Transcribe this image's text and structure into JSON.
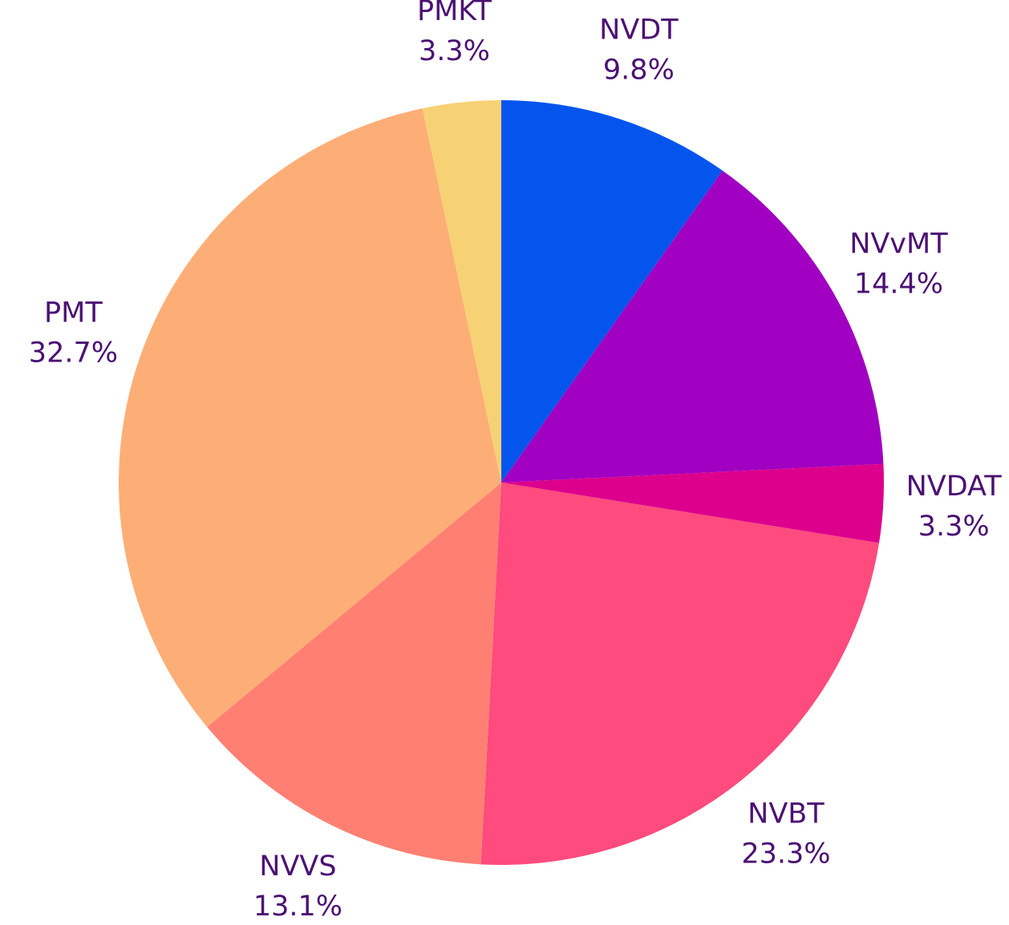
{
  "chart_data": {
    "type": "pie",
    "categories": [
      "NVDT",
      "NVvMT",
      "NVDAT",
      "NVBT",
      "NVVS",
      "PMT",
      "PMKT"
    ],
    "values": [
      9.8,
      14.4,
      3.3,
      23.3,
      13.1,
      32.7,
      3.3
    ],
    "value_labels": [
      "9.8%",
      "14.4%",
      "3.3%",
      "23.3%",
      "13.1%",
      "32.7%",
      "3.3%"
    ],
    "colors": [
      "#0455ee",
      "#a100c2",
      "#dc008c",
      "#ff4b7d",
      "#ff8073",
      "#fdae77",
      "#f6d274"
    ]
  }
}
